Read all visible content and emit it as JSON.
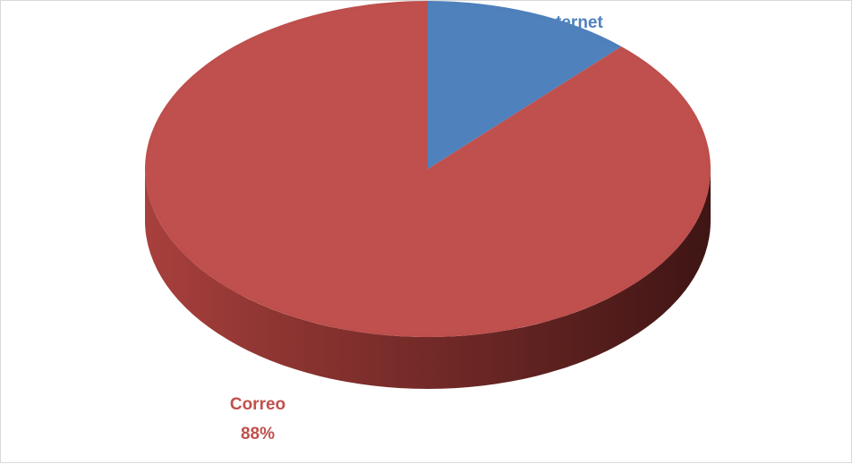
{
  "chart_data": {
    "type": "pie",
    "style": "3d",
    "title": "",
    "legend": "none",
    "categories": [
      "Internet",
      "Correo"
    ],
    "values": [
      12,
      88
    ],
    "labels": [
      {
        "name": "Internet",
        "value": "12%"
      },
      {
        "name": "Correo",
        "value": "88%"
      }
    ],
    "colors": [
      "#4f81bd",
      "#c0504d"
    ],
    "label_colors": [
      "#4f81bd",
      "#c0504d"
    ]
  }
}
